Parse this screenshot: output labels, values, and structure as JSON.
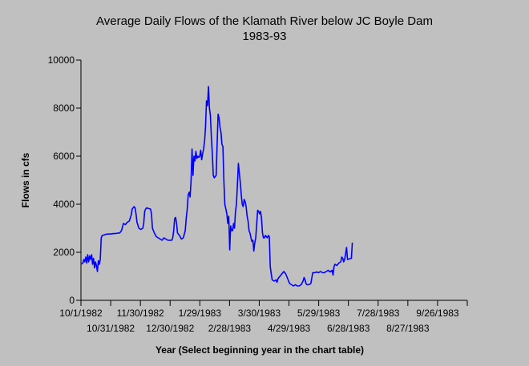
{
  "chart_data": {
    "type": "line",
    "title": "Average Daily Flows of the Klamath River below JC Boyle Dam",
    "subtitle": "1983-93",
    "xlabel": "Year (Select beginning year in the chart table)",
    "ylabel": "Flows in cfs",
    "ylim": [
      0,
      10000
    ],
    "yticks": [
      "0",
      "2000",
      "4000",
      "6000",
      "8000",
      "10000"
    ],
    "xticks": [
      "10/1/1982",
      "10/31/1982",
      "11/30/1982",
      "12/30/1982",
      "1/29/1983",
      "2/28/1983",
      "3/30/1983",
      "4/29/1983",
      "5/29/1983",
      "6/28/1983",
      "7/28/1983",
      "8/27/1983",
      "9/26/1983"
    ],
    "xlim_days": [
      0,
      400
    ],
    "grid": false,
    "line_color": "#0000ff",
    "series": [
      {
        "points": [
          [
            0,
            1500
          ],
          [
            2,
            1550
          ],
          [
            3,
            1700
          ],
          [
            4,
            1600
          ],
          [
            5,
            1800
          ],
          [
            6,
            1550
          ],
          [
            7,
            1900
          ],
          [
            8,
            1600
          ],
          [
            9,
            1850
          ],
          [
            10,
            1700
          ],
          [
            11,
            1900
          ],
          [
            12,
            1500
          ],
          [
            13,
            1750
          ],
          [
            14,
            1350
          ],
          [
            15,
            1600
          ],
          [
            16,
            1450
          ],
          [
            17,
            1200
          ],
          [
            18,
            1650
          ],
          [
            19,
            1500
          ],
          [
            20,
            1700
          ],
          [
            21,
            2600
          ],
          [
            22,
            2700
          ],
          [
            24,
            2720
          ],
          [
            26,
            2750
          ],
          [
            28,
            2760
          ],
          [
            30,
            2760
          ],
          [
            32,
            2770
          ],
          [
            34,
            2780
          ],
          [
            36,
            2780
          ],
          [
            38,
            2800
          ],
          [
            40,
            2800
          ],
          [
            42,
            2900
          ],
          [
            44,
            3200
          ],
          [
            46,
            3150
          ],
          [
            48,
            3250
          ],
          [
            50,
            3300
          ],
          [
            52,
            3550
          ],
          [
            53,
            3800
          ],
          [
            55,
            3900
          ],
          [
            56,
            3850
          ],
          [
            57,
            3600
          ],
          [
            58,
            3250
          ],
          [
            60,
            3000
          ],
          [
            62,
            2950
          ],
          [
            64,
            3000
          ],
          [
            65,
            3200
          ],
          [
            66,
            3700
          ],
          [
            67,
            3800
          ],
          [
            68,
            3850
          ],
          [
            70,
            3820
          ],
          [
            72,
            3800
          ],
          [
            73,
            3600
          ],
          [
            74,
            3000
          ],
          [
            76,
            2800
          ],
          [
            78,
            2650
          ],
          [
            80,
            2600
          ],
          [
            82,
            2550
          ],
          [
            84,
            2500
          ],
          [
            86,
            2600
          ],
          [
            88,
            2550
          ],
          [
            90,
            2500
          ],
          [
            92,
            2500
          ],
          [
            94,
            2500
          ],
          [
            95,
            2600
          ],
          [
            96,
            2900
          ],
          [
            97,
            3400
          ],
          [
            98,
            3450
          ],
          [
            99,
            3200
          ],
          [
            100,
            2800
          ],
          [
            102,
            2700
          ],
          [
            104,
            2550
          ],
          [
            106,
            2600
          ],
          [
            108,
            2900
          ],
          [
            109,
            3400
          ],
          [
            110,
            3800
          ],
          [
            111,
            4400
          ],
          [
            112,
            4500
          ],
          [
            113,
            4300
          ],
          [
            114,
            5000
          ],
          [
            115,
            6300
          ],
          [
            116,
            5200
          ],
          [
            117,
            6000
          ],
          [
            118,
            5800
          ],
          [
            119,
            6200
          ],
          [
            120,
            5900
          ],
          [
            121,
            6000
          ],
          [
            122,
            5950
          ],
          [
            123,
            6000
          ],
          [
            124,
            6250
          ],
          [
            125,
            5850
          ],
          [
            126,
            6100
          ],
          [
            127,
            6300
          ],
          [
            128,
            6600
          ],
          [
            129,
            7200
          ],
          [
            130,
            8300
          ],
          [
            131,
            8100
          ],
          [
            132,
            8900
          ],
          [
            133,
            8000
          ],
          [
            134,
            7700
          ],
          [
            135,
            6800
          ],
          [
            136,
            6100
          ],
          [
            137,
            5200
          ],
          [
            138,
            5100
          ],
          [
            139,
            5150
          ],
          [
            140,
            5200
          ],
          [
            141,
            6500
          ],
          [
            142,
            7750
          ],
          [
            143,
            7600
          ],
          [
            144,
            7200
          ],
          [
            145,
            7000
          ],
          [
            146,
            6500
          ],
          [
            147,
            6400
          ],
          [
            148,
            5000
          ],
          [
            149,
            4000
          ],
          [
            150,
            3800
          ],
          [
            151,
            3600
          ],
          [
            152,
            3200
          ],
          [
            153,
            3500
          ],
          [
            154,
            2100
          ],
          [
            155,
            3100
          ],
          [
            156,
            2900
          ],
          [
            157,
            2900
          ],
          [
            158,
            3200
          ],
          [
            159,
            3000
          ],
          [
            160,
            3700
          ],
          [
            161,
            4000
          ],
          [
            162,
            4800
          ],
          [
            163,
            5700
          ],
          [
            164,
            5300
          ],
          [
            165,
            4900
          ],
          [
            166,
            4400
          ],
          [
            167,
            4000
          ],
          [
            168,
            3900
          ],
          [
            169,
            4200
          ],
          [
            170,
            4100
          ],
          [
            171,
            3900
          ],
          [
            172,
            3500
          ],
          [
            173,
            3300
          ],
          [
            174,
            2900
          ],
          [
            175,
            2800
          ],
          [
            176,
            2600
          ],
          [
            177,
            2450
          ],
          [
            178,
            2500
          ],
          [
            179,
            2050
          ],
          [
            180,
            2400
          ],
          [
            181,
            2600
          ],
          [
            182,
            3200
          ],
          [
            183,
            3750
          ],
          [
            184,
            3700
          ],
          [
            185,
            3600
          ],
          [
            186,
            3700
          ],
          [
            187,
            3400
          ],
          [
            188,
            2800
          ],
          [
            189,
            2600
          ],
          [
            190,
            2600
          ],
          [
            191,
            2700
          ],
          [
            192,
            2650
          ],
          [
            193,
            2600
          ],
          [
            194,
            2700
          ],
          [
            195,
            2650
          ],
          [
            196,
            1400
          ],
          [
            197,
            1100
          ],
          [
            198,
            850
          ],
          [
            200,
            800
          ],
          [
            202,
            850
          ],
          [
            203,
            750
          ],
          [
            204,
            900
          ],
          [
            206,
            1000
          ],
          [
            208,
            1100
          ],
          [
            210,
            1200
          ],
          [
            212,
            1100
          ],
          [
            214,
            900
          ],
          [
            216,
            700
          ],
          [
            218,
            650
          ],
          [
            220,
            600
          ],
          [
            222,
            650
          ],
          [
            224,
            600
          ],
          [
            226,
            600
          ],
          [
            228,
            650
          ],
          [
            230,
            800
          ],
          [
            231,
            950
          ],
          [
            232,
            850
          ],
          [
            233,
            700
          ],
          [
            234,
            650
          ],
          [
            236,
            650
          ],
          [
            238,
            700
          ],
          [
            240,
            1150
          ],
          [
            242,
            1150
          ],
          [
            244,
            1180
          ],
          [
            246,
            1150
          ],
          [
            248,
            1200
          ],
          [
            250,
            1150
          ],
          [
            252,
            1150
          ],
          [
            254,
            1200
          ],
          [
            256,
            1250
          ],
          [
            258,
            1180
          ],
          [
            260,
            1250
          ],
          [
            261,
            1050
          ],
          [
            262,
            1400
          ],
          [
            263,
            1500
          ],
          [
            265,
            1450
          ],
          [
            267,
            1550
          ],
          [
            269,
            1600
          ],
          [
            270,
            1800
          ],
          [
            271,
            1750
          ],
          [
            272,
            1600
          ],
          [
            273,
            1700
          ],
          [
            275,
            2200
          ],
          [
            276,
            1700
          ],
          [
            280,
            1750
          ],
          [
            281,
            2400
          ]
        ]
      }
    ]
  }
}
